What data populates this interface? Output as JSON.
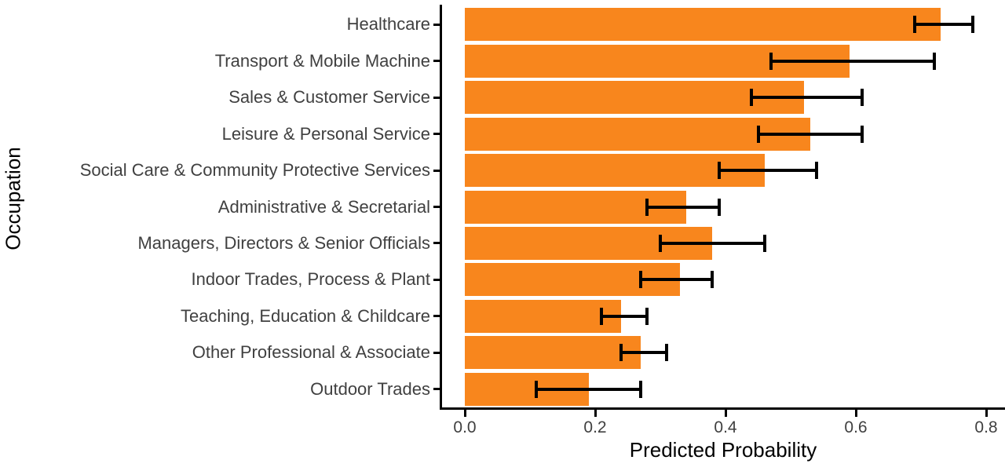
{
  "chart_data": {
    "type": "bar",
    "orientation": "horizontal",
    "title": "",
    "xlabel": "Predicted Probability",
    "ylabel": "Occupation",
    "categories": [
      "Healthcare",
      "Transport & Mobile Machine",
      "Sales & Customer Service",
      "Leisure & Personal Service",
      "Social Care & Community Protective Services",
      "Administrative & Secretarial",
      "Managers, Directors & Senior Officials",
      "Indoor Trades, Process & Plant",
      "Teaching, Education & Childcare",
      "Other Professional & Associate",
      "Outdoor Trades"
    ],
    "values": [
      0.73,
      0.59,
      0.52,
      0.53,
      0.46,
      0.34,
      0.38,
      0.33,
      0.24,
      0.27,
      0.19
    ],
    "error_low": [
      0.69,
      0.47,
      0.44,
      0.45,
      0.39,
      0.28,
      0.3,
      0.27,
      0.21,
      0.24,
      0.11
    ],
    "error_high": [
      0.78,
      0.72,
      0.61,
      0.61,
      0.54,
      0.39,
      0.46,
      0.38,
      0.28,
      0.31,
      0.27
    ],
    "x_ticks": [
      0.0,
      0.2,
      0.4,
      0.6,
      0.8
    ],
    "x_tick_labels": [
      "0.0",
      "0.2",
      "0.4",
      "0.6",
      "0.8"
    ],
    "xlim": [
      0,
      0.83
    ],
    "legend": "none",
    "grid": "off",
    "bar_color": "#F8861D",
    "error_bar_color": "#000000",
    "axis_color": "#000000",
    "text_color": "#404040",
    "title_color": "#000000"
  }
}
